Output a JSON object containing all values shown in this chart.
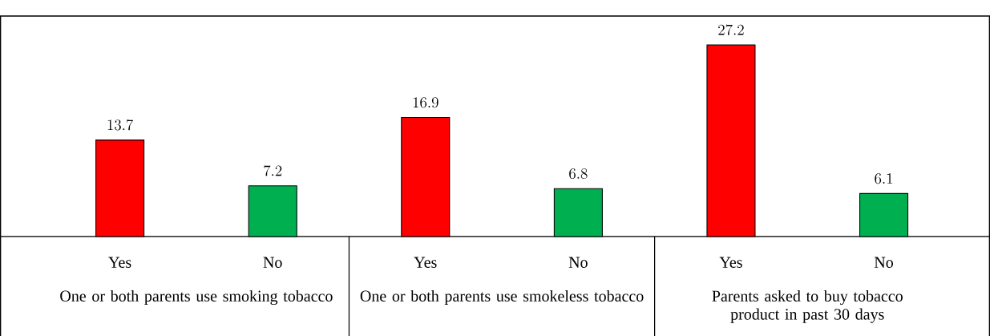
{
  "chart_data": {
    "type": "bar",
    "categories": [
      "Yes",
      "No",
      "Yes",
      "No",
      "Yes",
      "No"
    ],
    "values": [
      13.7,
      7.2,
      16.9,
      6.8,
      27.2,
      6.1
    ],
    "colors": [
      "#ff0000",
      "#00b050",
      "#ff0000",
      "#00b050",
      "#ff0000",
      "#00b050"
    ],
    "data_labels": true,
    "annotations": [
      "One or both parents use smoking tobacco",
      "One or both parents use smokeless tobacco",
      "Parents asked to buy tobacco product in past 30 days"
    ]
  }
}
